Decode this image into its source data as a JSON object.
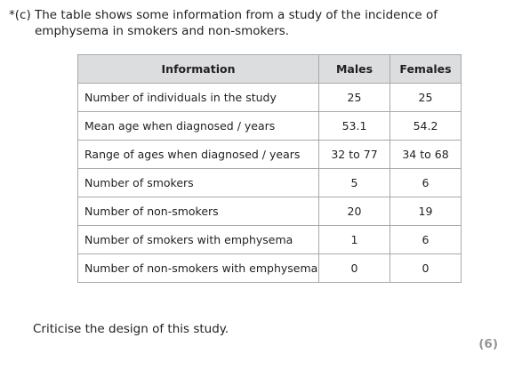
{
  "question": {
    "label": "*(c)",
    "text": "The table shows some information from a study of the incidence of emphysema in smokers and non-smokers."
  },
  "table": {
    "headers": [
      "Information",
      "Males",
      "Females"
    ],
    "rows": [
      {
        "info": "Number of individuals in the study",
        "males": "25",
        "females": "25"
      },
      {
        "info": "Mean age when diagnosed / years",
        "males": "53.1",
        "females": "54.2"
      },
      {
        "info": "Range of ages when diagnosed / years",
        "males": "32 to 77",
        "females": "34 to 68"
      },
      {
        "info": "Number of smokers",
        "males": "5",
        "females": "6"
      },
      {
        "info": "Number of non-smokers",
        "males": "20",
        "females": "19"
      },
      {
        "info": "Number of smokers with emphysema",
        "males": "1",
        "females": "6"
      },
      {
        "info": "Number of non-smokers with emphysema",
        "males": "0",
        "females": "0"
      }
    ]
  },
  "prompt": "Criticise the design of this study.",
  "marks": "(6)"
}
